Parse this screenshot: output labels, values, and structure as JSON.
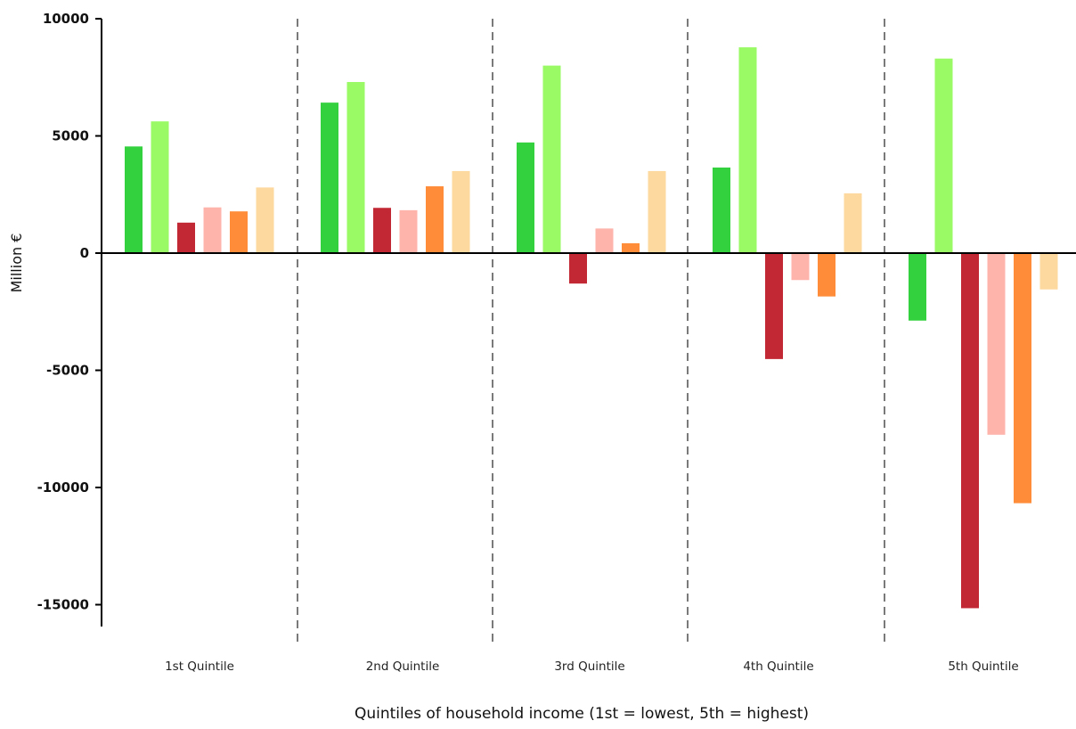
{
  "chart_data": {
    "type": "bar",
    "title": "",
    "xlabel": "Quintiles of household income (1st = lowest, 5th = highest)",
    "ylabel": "Million €",
    "ylim": [
      -16000,
      10000
    ],
    "yticks": [
      10000,
      5000,
      0,
      -5000,
      -10000,
      -15000
    ],
    "ytick_labels": [
      "10000",
      "5000",
      "0",
      "-5000",
      "-10000",
      "-15000"
    ],
    "categories": [
      "1st Quintile",
      "2nd Quintile",
      "3rd Quintile",
      "4th Quintile",
      "5th Quintile"
    ],
    "grid": false,
    "legend": "none",
    "group_separators": "dashed",
    "series": [
      {
        "color": "#33d13e",
        "values": [
          4550,
          6420,
          4720,
          3650,
          -2880
        ]
      },
      {
        "color": "#99fa66",
        "values": [
          5620,
          7300,
          8000,
          8780,
          8300
        ]
      },
      {
        "color": "#c22833",
        "values": [
          1300,
          1930,
          -1300,
          -4520,
          -15150
        ]
      },
      {
        "color": "#feb3ab",
        "values": [
          1950,
          1830,
          1050,
          -1150,
          -7750
        ]
      },
      {
        "color": "#fe8c39",
        "values": [
          1780,
          2850,
          420,
          -1850,
          -10670
        ]
      },
      {
        "color": "#fed99f",
        "values": [
          2800,
          3500,
          3500,
          2550,
          -1550
        ]
      }
    ]
  }
}
